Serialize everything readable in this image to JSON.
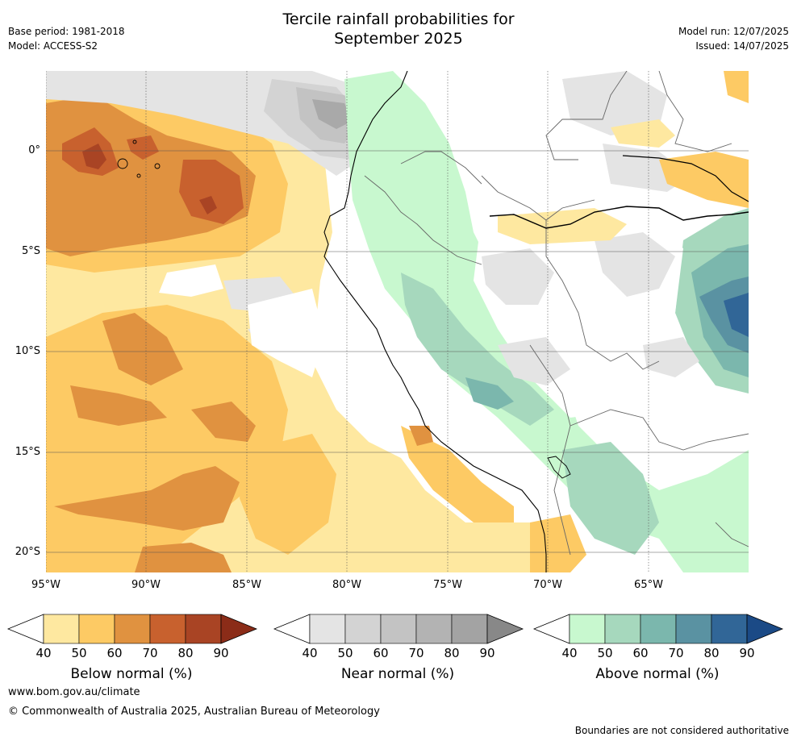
{
  "header": {
    "title_line1": "Tercile rainfall probabilities for",
    "title_line2": "September 2025",
    "base_period": "Base period: 1981-2018",
    "model": "Model: ACCESS-S2",
    "model_run": "Model run: 12/07/2025",
    "issued": "Issued: 14/07/2025"
  },
  "map": {
    "lat_labels": [
      "0°",
      "5°S",
      "10°S",
      "15°S",
      "20°S"
    ],
    "lon_labels": [
      "95°W",
      "90°W",
      "85°W",
      "80°W",
      "75°W",
      "70°W",
      "65°W"
    ],
    "extent": {
      "lon_min": -95,
      "lon_max": -60,
      "lat_min": -21,
      "lat_max": 4
    }
  },
  "colorbars": [
    {
      "label": "Below normal (%)",
      "ticks": [
        "40",
        "50",
        "60",
        "70",
        "80",
        "90"
      ],
      "colors": [
        "#fee8a0",
        "#fdca64",
        "#e09240",
        "#c8612e",
        "#a94424",
        "#8b2c18"
      ]
    },
    {
      "label": "Near normal (%)",
      "ticks": [
        "40",
        "50",
        "60",
        "70",
        "80",
        "90"
      ],
      "colors": [
        "#e4e4e4",
        "#d3d3d3",
        "#c3c3c3",
        "#b3b3b3",
        "#a3a3a3",
        "#888888"
      ]
    },
    {
      "label": "Above normal (%)",
      "ticks": [
        "40",
        "50",
        "60",
        "70",
        "80",
        "90"
      ],
      "colors": [
        "#c8f8cf",
        "#a6d8bd",
        "#7bb7ad",
        "#5a92a2",
        "#316697",
        "#1b4a86"
      ]
    }
  ],
  "footer": {
    "website": "www.bom.gov.au/climate",
    "copyright": "© Commonwealth of Australia 2025, Australian Bureau of Meteorology",
    "disclaimer": "Boundaries are not considered authoritative"
  }
}
